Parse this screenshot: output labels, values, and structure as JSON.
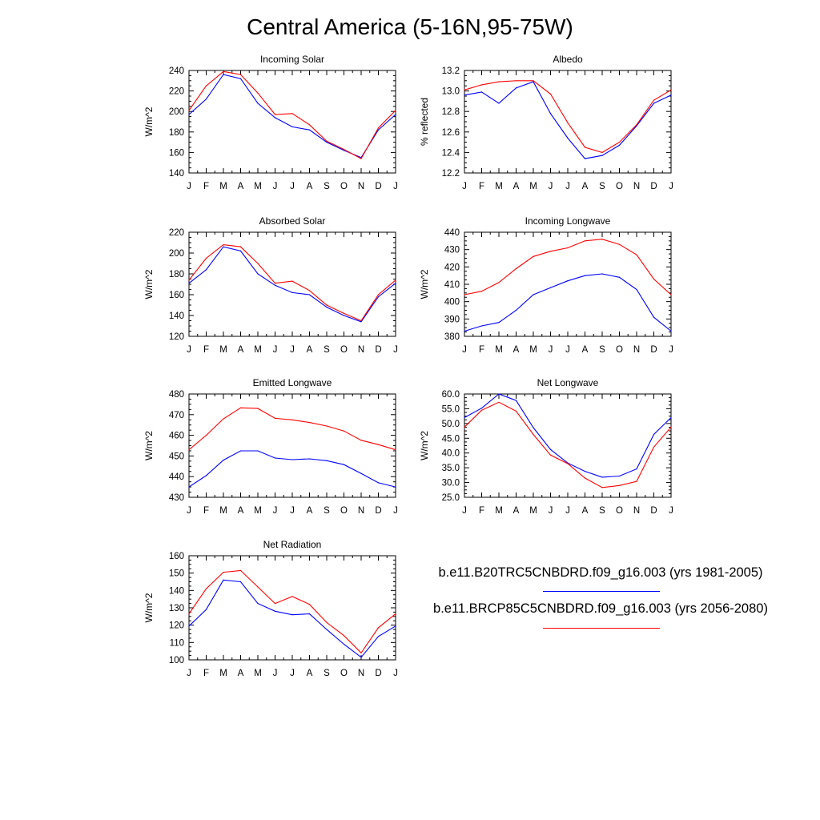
{
  "title": "Central America (5-16N,95-75W)",
  "colors": {
    "series_a": "#0000ff",
    "series_b": "#ff0000",
    "axis": "#000000"
  },
  "legend": {
    "entries": [
      {
        "label": "b.e11.B20TRC5CNBDRD.f09_g16.003 (yrs 1981-2005)",
        "color": "#0000ff"
      },
      {
        "label": "b.e11.BRCP85C5CNBDRD.f09_g16.003 (yrs 2056-2080)",
        "color": "#ff0000"
      }
    ]
  },
  "chart_data": [
    {
      "type": "line",
      "title": "Incoming Solar",
      "ylabel": "W/m^2",
      "categories": [
        "J",
        "F",
        "M",
        "A",
        "M",
        "J",
        "J",
        "A",
        "S",
        "O",
        "N",
        "D",
        "J"
      ],
      "ylim": [
        140,
        240
      ],
      "yticks": [
        "140",
        "160",
        "180",
        "200",
        "220",
        "240"
      ],
      "series": [
        {
          "color": "#0000ff",
          "values": [
            197,
            212,
            236,
            232,
            208,
            194,
            185,
            182,
            170,
            162,
            155,
            182,
            197
          ]
        },
        {
          "color": "#ff0000",
          "values": [
            201,
            225,
            239,
            236,
            218,
            197,
            198,
            187,
            171,
            163,
            154,
            184,
            201
          ]
        }
      ]
    },
    {
      "type": "line",
      "title": "Albedo",
      "ylabel": "% reflected",
      "categories": [
        "J",
        "F",
        "M",
        "A",
        "M",
        "J",
        "J",
        "A",
        "S",
        "O",
        "N",
        "D",
        "J"
      ],
      "ylim": [
        12.2,
        13.2
      ],
      "yticks": [
        "12.2",
        "12.4",
        "12.6",
        "12.8",
        "13.0",
        "13.2"
      ],
      "series": [
        {
          "color": "#0000ff",
          "values": [
            12.96,
            12.99,
            12.88,
            13.03,
            13.09,
            12.78,
            12.54,
            12.34,
            12.37,
            12.47,
            12.66,
            12.88,
            12.96
          ]
        },
        {
          "color": "#ff0000",
          "values": [
            13.01,
            13.06,
            13.09,
            13.1,
            13.1,
            12.97,
            12.69,
            12.45,
            12.4,
            12.5,
            12.67,
            12.91,
            13.01
          ]
        }
      ]
    },
    {
      "type": "line",
      "title": "Absorbed Solar",
      "ylabel": "W/m^2",
      "categories": [
        "J",
        "F",
        "M",
        "A",
        "M",
        "J",
        "J",
        "A",
        "S",
        "O",
        "N",
        "D",
        "J"
      ],
      "ylim": [
        120,
        220
      ],
      "yticks": [
        "120",
        "140",
        "160",
        "180",
        "200",
        "220"
      ],
      "series": [
        {
          "color": "#0000ff",
          "values": [
            171,
            184,
            206,
            202,
            180,
            169,
            162,
            160,
            148,
            140,
            134,
            158,
            171
          ]
        },
        {
          "color": "#ff0000",
          "values": [
            174,
            195,
            208,
            206,
            190,
            171,
            173,
            164,
            150,
            142,
            135,
            160,
            174
          ]
        }
      ]
    },
    {
      "type": "line",
      "title": "Incoming Longwave",
      "ylabel": "W/m^2",
      "categories": [
        "J",
        "F",
        "M",
        "A",
        "M",
        "J",
        "J",
        "A",
        "S",
        "O",
        "N",
        "D",
        "J"
      ],
      "ylim": [
        380,
        440
      ],
      "yticks": [
        "380",
        "390",
        "400",
        "410",
        "420",
        "430",
        "440"
      ],
      "series": [
        {
          "color": "#0000ff",
          "values": [
            383,
            386,
            388,
            395,
            404,
            408,
            412,
            415,
            416,
            414,
            407,
            391,
            383
          ]
        },
        {
          "color": "#ff0000",
          "values": [
            404,
            406,
            411,
            419,
            426,
            429,
            431,
            435,
            436,
            433,
            427,
            413,
            404
          ]
        }
      ]
    },
    {
      "type": "line",
      "title": "Emitted Longwave",
      "ylabel": "W/m^2",
      "categories": [
        "J",
        "F",
        "M",
        "A",
        "M",
        "J",
        "J",
        "A",
        "S",
        "O",
        "N",
        "D",
        "J"
      ],
      "ylim": [
        430,
        480
      ],
      "yticks": [
        "430",
        "440",
        "450",
        "460",
        "470",
        "480"
      ],
      "series": [
        {
          "color": "#0000ff",
          "values": [
            435,
            440.5,
            448,
            452.5,
            452.5,
            449,
            448.2,
            448.6,
            447.7,
            445.8,
            441.5,
            437,
            435
          ]
        },
        {
          "color": "#ff0000",
          "values": [
            453,
            460,
            468,
            473.3,
            473,
            468.2,
            467.5,
            466.2,
            464.5,
            462.1,
            457.6,
            455.5,
            453
          ]
        }
      ]
    },
    {
      "type": "line",
      "title": "Net Longwave",
      "ylabel": "W/m^2",
      "categories": [
        "J",
        "F",
        "M",
        "A",
        "M",
        "J",
        "J",
        "A",
        "S",
        "O",
        "N",
        "D",
        "J"
      ],
      "ylim": [
        25,
        60
      ],
      "yticks": [
        "25.0",
        "30.0",
        "35.0",
        "40.0",
        "45.0",
        "50.0",
        "55.0",
        "60.0"
      ],
      "series": [
        {
          "color": "#0000ff",
          "values": [
            52.0,
            55.2,
            60.0,
            57.8,
            48.6,
            41.2,
            36.6,
            33.8,
            31.8,
            32.2,
            34.6,
            46.3,
            52.0
          ]
        },
        {
          "color": "#ff0000",
          "values": [
            48.8,
            54.5,
            57.2,
            54.2,
            46.3,
            39.3,
            36.4,
            31.5,
            28.3,
            29.0,
            30.4,
            42.0,
            48.8
          ]
        }
      ]
    },
    {
      "type": "line",
      "title": "Net Radiation",
      "ylabel": "W/m^2",
      "categories": [
        "J",
        "F",
        "M",
        "A",
        "M",
        "J",
        "J",
        "A",
        "S",
        "O",
        "N",
        "D",
        "J"
      ],
      "ylim": [
        100,
        160
      ],
      "yticks": [
        "100",
        "110",
        "120",
        "130",
        "140",
        "150",
        "160"
      ],
      "series": [
        {
          "color": "#0000ff",
          "values": [
            119.5,
            129,
            146,
            145,
            132.5,
            128,
            126,
            126.5,
            117.5,
            109,
            101.5,
            113.5,
            119.5
          ]
        },
        {
          "color": "#ff0000",
          "values": [
            126.5,
            141,
            150.5,
            151.5,
            142,
            132.5,
            136.5,
            132,
            121.5,
            114,
            104,
            118.5,
            126.5
          ]
        }
      ]
    }
  ]
}
